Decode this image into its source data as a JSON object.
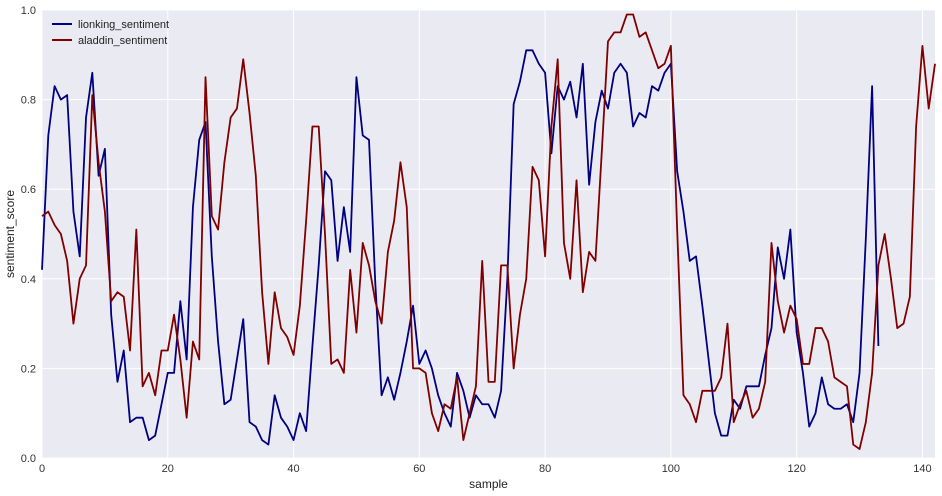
{
  "chart_data": {
    "type": "line",
    "xlabel": "sample",
    "ylabel": "sentiment_score",
    "xlim": [
      0,
      142
    ],
    "ylim": [
      0.0,
      1.0
    ],
    "x_ticks": [
      0,
      20,
      40,
      60,
      80,
      100,
      120,
      140
    ],
    "y_ticks": [
      0.0,
      0.2,
      0.4,
      0.6,
      0.8,
      1.0
    ],
    "x_tick_labels": [
      "0",
      "20",
      "40",
      "60",
      "80",
      "100",
      "120",
      "140"
    ],
    "y_tick_labels": [
      "0.0",
      "0.2",
      "0.4",
      "0.6",
      "0.8",
      "1.0"
    ],
    "grid": true,
    "legend_position": "top-left",
    "background_color": "#EAEAF2",
    "series": [
      {
        "name": "lionking_sentiment",
        "color": "#000080",
        "values": [
          0.42,
          0.72,
          0.83,
          0.8,
          0.81,
          0.55,
          0.45,
          0.76,
          0.86,
          0.63,
          0.69,
          0.32,
          0.17,
          0.24,
          0.08,
          0.09,
          0.09,
          0.04,
          0.05,
          0.12,
          0.19,
          0.19,
          0.35,
          0.22,
          0.56,
          0.71,
          0.75,
          0.45,
          0.26,
          0.12,
          0.13,
          0.22,
          0.31,
          0.08,
          0.07,
          0.04,
          0.03,
          0.14,
          0.09,
          0.07,
          0.04,
          0.1,
          0.06,
          0.25,
          0.43,
          0.64,
          0.62,
          0.44,
          0.56,
          0.46,
          0.85,
          0.72,
          0.71,
          0.39,
          0.14,
          0.18,
          0.13,
          0.19,
          0.26,
          0.34,
          0.21,
          0.24,
          0.2,
          0.14,
          0.1,
          0.07,
          0.19,
          0.15,
          0.09,
          0.14,
          0.12,
          0.12,
          0.09,
          0.15,
          0.4,
          0.79,
          0.84,
          0.91,
          0.91,
          0.88,
          0.86,
          0.68,
          0.83,
          0.8,
          0.84,
          0.76,
          0.88,
          0.61,
          0.75,
          0.82,
          0.78,
          0.86,
          0.88,
          0.86,
          0.74,
          0.77,
          0.76,
          0.83,
          0.82,
          0.86,
          0.88,
          0.64,
          0.55,
          0.44,
          0.45,
          0.34,
          0.22,
          0.1,
          0.05,
          0.05,
          0.13,
          0.11,
          0.16,
          0.16,
          0.16,
          0.23,
          0.29,
          0.47,
          0.4,
          0.51,
          0.28,
          0.19,
          0.07,
          0.1,
          0.18,
          0.12,
          0.11,
          0.11,
          0.12,
          0.08,
          0.19,
          0.49,
          0.83,
          0.25
        ]
      },
      {
        "name": "aladdin_sentiment",
        "color": "#800000",
        "values": [
          0.54,
          0.55,
          0.52,
          0.5,
          0.44,
          0.3,
          0.4,
          0.43,
          0.81,
          0.66,
          0.55,
          0.35,
          0.37,
          0.36,
          0.24,
          0.51,
          0.16,
          0.19,
          0.14,
          0.24,
          0.24,
          0.32,
          0.22,
          0.09,
          0.26,
          0.22,
          0.85,
          0.54,
          0.51,
          0.66,
          0.76,
          0.78,
          0.89,
          0.77,
          0.63,
          0.37,
          0.21,
          0.37,
          0.29,
          0.27,
          0.23,
          0.34,
          0.53,
          0.74,
          0.74,
          0.5,
          0.21,
          0.22,
          0.19,
          0.42,
          0.28,
          0.48,
          0.43,
          0.35,
          0.3,
          0.46,
          0.53,
          0.66,
          0.56,
          0.2,
          0.2,
          0.19,
          0.1,
          0.06,
          0.12,
          0.11,
          0.18,
          0.04,
          0.1,
          0.16,
          0.44,
          0.17,
          0.17,
          0.43,
          0.43,
          0.2,
          0.32,
          0.4,
          0.65,
          0.62,
          0.45,
          0.74,
          0.89,
          0.48,
          0.4,
          0.62,
          0.37,
          0.46,
          0.44,
          0.68,
          0.93,
          0.95,
          0.95,
          0.99,
          0.99,
          0.94,
          0.95,
          0.91,
          0.87,
          0.88,
          0.92,
          0.51,
          0.14,
          0.12,
          0.08,
          0.15,
          0.15,
          0.15,
          0.18,
          0.3,
          0.08,
          0.12,
          0.15,
          0.09,
          0.11,
          0.17,
          0.48,
          0.35,
          0.28,
          0.34,
          0.31,
          0.21,
          0.21,
          0.29,
          0.29,
          0.26,
          0.18,
          0.17,
          0.16,
          0.03,
          0.02,
          0.08,
          0.19,
          0.43,
          0.5,
          0.4,
          0.29,
          0.3,
          0.36,
          0.74,
          0.92,
          0.78,
          0.88
        ]
      }
    ]
  }
}
